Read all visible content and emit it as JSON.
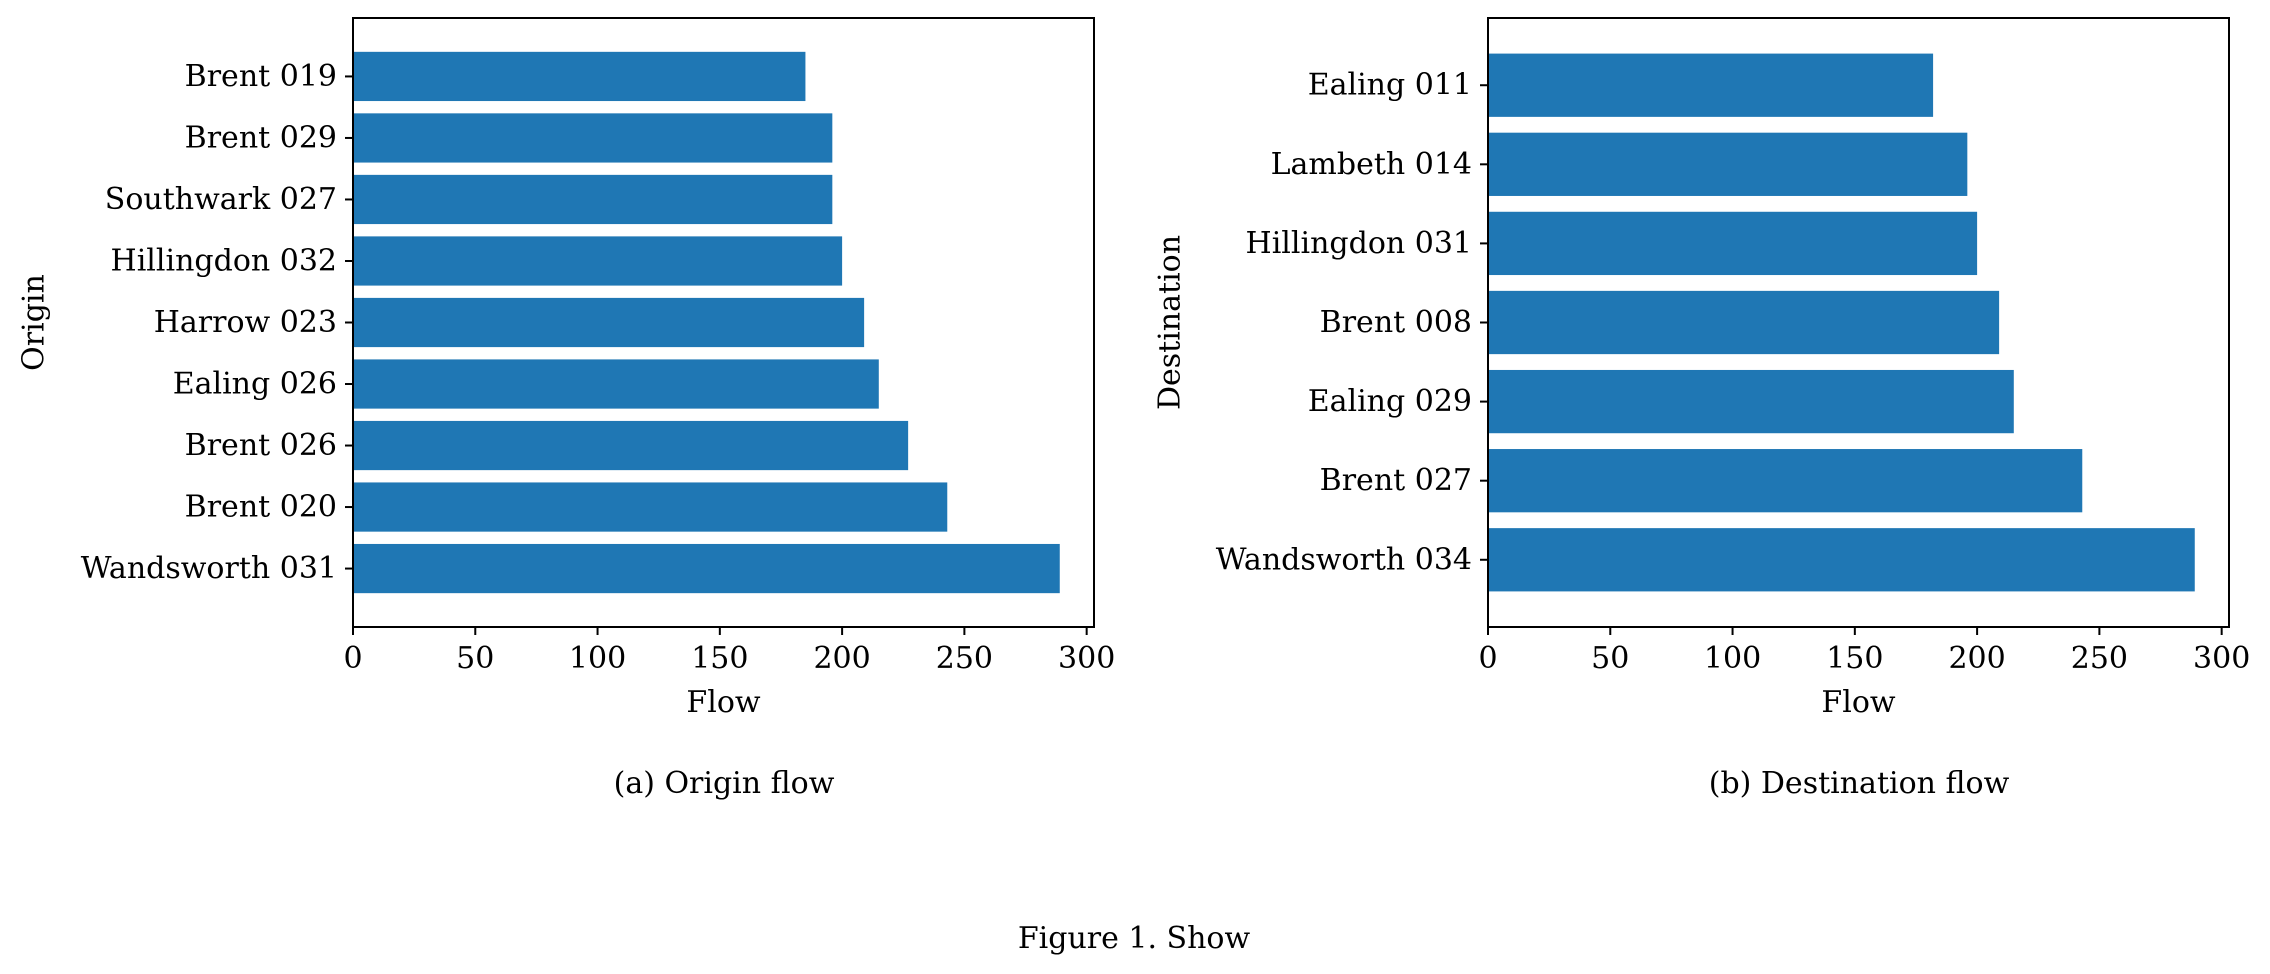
{
  "figure_caption": "Figure 1. Show",
  "chart_data": [
    {
      "type": "bar",
      "orientation": "horizontal",
      "caption": "(a) Origin flow",
      "xlabel": "Flow",
      "ylabel": "Origin",
      "xlim": [
        0,
        303
      ],
      "xticks": [
        0,
        50,
        100,
        150,
        200,
        250,
        300
      ],
      "categories": [
        "Wandsworth 031",
        "Brent 020",
        "Brent 026",
        "Ealing 026",
        "Harrow 023",
        "Hillingdon 032",
        "Southwark 027",
        "Brent 029",
        "Brent 019"
      ],
      "values": [
        289,
        243,
        227,
        215,
        209,
        200,
        196,
        196,
        185
      ],
      "bar_color": "#1f77b4",
      "grid": false
    },
    {
      "type": "bar",
      "orientation": "horizontal",
      "caption": "(b) Destination flow",
      "xlabel": "Flow",
      "ylabel": "Destination",
      "xlim": [
        0,
        303
      ],
      "xticks": [
        0,
        50,
        100,
        150,
        200,
        250,
        300
      ],
      "categories": [
        "Wandsworth 034",
        "Brent 027",
        "Ealing 029",
        "Brent 008",
        "Hillingdon 031",
        "Lambeth 014",
        "Ealing 011"
      ],
      "values": [
        289,
        243,
        215,
        209,
        200,
        196,
        182
      ],
      "bar_color": "#1f77b4",
      "grid": false
    }
  ]
}
